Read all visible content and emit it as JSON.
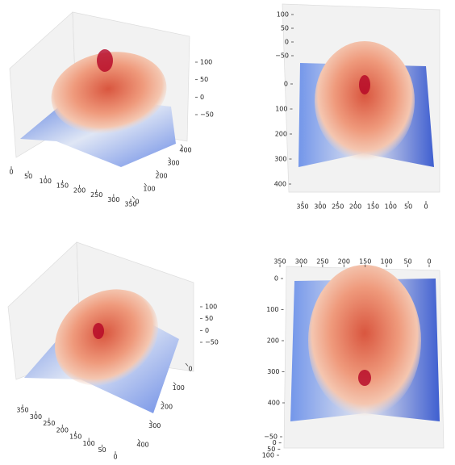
{
  "chart_data": [
    {
      "type": "surface",
      "xticks": [
        0,
        50,
        100,
        150,
        200,
        250,
        300,
        350
      ],
      "yticks": [
        0,
        100,
        200,
        300,
        400
      ],
      "zticks": [
        {
          "value": -50,
          "label": "−50"
        },
        0,
        50,
        100
      ]
    },
    {
      "type": "surface",
      "xticks": [
        0,
        50,
        100,
        150,
        200,
        250,
        300,
        350
      ],
      "yticks": [
        0,
        100,
        200,
        300,
        400
      ],
      "zticks": [
        {
          "value": -50,
          "label": "−50"
        },
        0,
        50,
        100
      ]
    },
    {
      "type": "surface",
      "xticks": [
        0,
        50,
        100,
        150,
        200,
        250,
        300,
        350
      ],
      "yticks": [
        0,
        100,
        200,
        300,
        400
      ],
      "zticks": [
        {
          "value": -50,
          "label": "−50"
        },
        0,
        50,
        100
      ]
    },
    {
      "type": "surface",
      "xticks": [
        0,
        50,
        100,
        150,
        200,
        250,
        300,
        350
      ],
      "yticks": [
        0,
        100,
        200,
        300,
        400
      ],
      "zticks": [
        {
          "value": -50,
          "label": "−50"
        },
        0,
        50,
        100
      ]
    }
  ]
}
